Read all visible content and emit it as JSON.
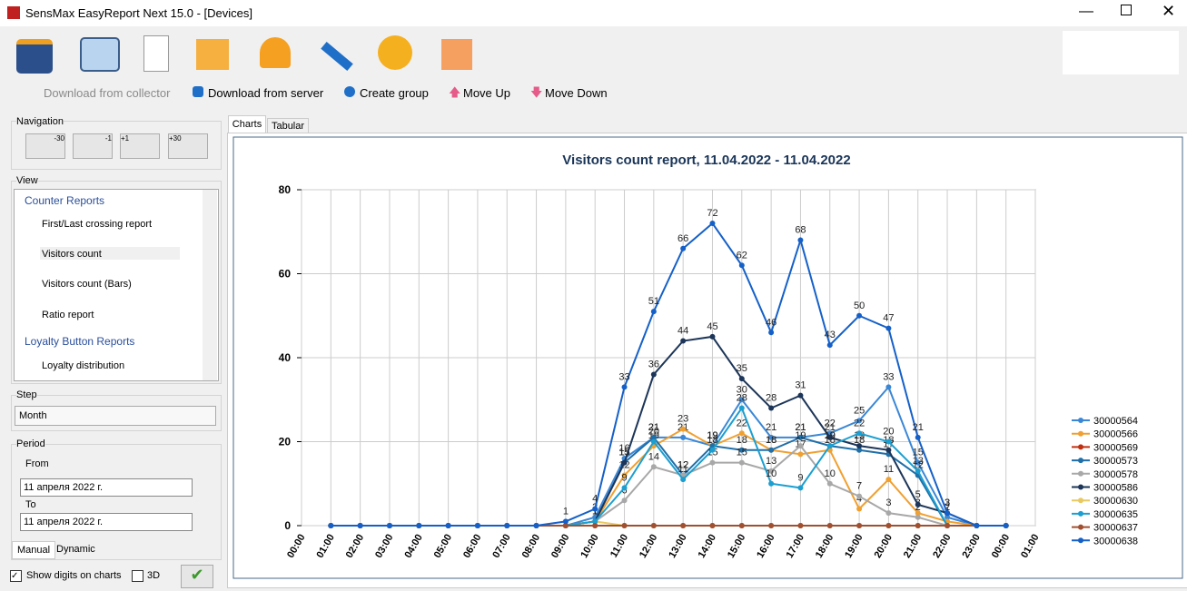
{
  "window": {
    "title": "SensMax EasyReport Next 15.0  - [Devices]"
  },
  "toolbar2": [
    "Download from collector",
    "Download from server",
    "Create group",
    "Move Up",
    "Move Down"
  ],
  "left": {
    "navigation": {
      "title": "Navigation",
      "buttons": [
        "-30",
        "-1",
        "+1",
        "+30"
      ]
    },
    "view": {
      "title": "View",
      "items": [
        "Counter Reports",
        "First/Last crossing report",
        "Visitors count",
        "Visitors count (Bars)",
        "Ratio report",
        "Loyalty Button Reports",
        "Loyalty distribution"
      ]
    },
    "step": {
      "title": "Step",
      "value": "Month"
    },
    "period": {
      "title": "Period",
      "from": "From",
      "from_date": "11  апреля  2022 г.",
      "to": "To",
      "to_date": "11  апреля  2022 г."
    },
    "tabs": [
      "Manual",
      "Dynamic"
    ],
    "checks": [
      "Show digits on charts",
      "3D"
    ]
  },
  "tabs": [
    "Charts",
    "Tabular"
  ],
  "chart_data": {
    "type": "line",
    "title": "Visitors count report, 11.04.2022 - 11.04.2022",
    "categories": [
      "00:00",
      "01:00",
      "02:00",
      "03:00",
      "04:00",
      "05:00",
      "06:00",
      "07:00",
      "08:00",
      "09:00",
      "10:00",
      "11:00",
      "12:00",
      "13:00",
      "14:00",
      "15:00",
      "16:00",
      "17:00",
      "18:00",
      "19:00",
      "20:00",
      "21:00",
      "22:00",
      "23:00",
      "00:00",
      "01:00"
    ],
    "ylim": [
      0,
      80
    ],
    "yticks": [
      0,
      20,
      40,
      60,
      80
    ],
    "grid": true,
    "legend": "right",
    "value_labels_shown": true,
    "series": [
      {
        "name": "30000564",
        "color": "#3a87d6",
        "values": [
          null,
          0,
          0,
          0,
          0,
          0,
          0,
          0,
          0,
          0,
          2,
          16,
          21,
          21,
          19,
          30,
          21,
          21,
          22,
          25,
          33,
          15,
          2,
          0,
          0,
          null
        ]
      },
      {
        "name": "30000566",
        "color": "#f0a030",
        "values": [
          null,
          0,
          0,
          0,
          0,
          0,
          0,
          0,
          0,
          0,
          1,
          12,
          19,
          23,
          19,
          22,
          18,
          17,
          18,
          4,
          11,
          3,
          1,
          0,
          0,
          null
        ]
      },
      {
        "name": "30000569",
        "color": "#c03010",
        "values": [
          null,
          0,
          0,
          0,
          0,
          0,
          0,
          0,
          0,
          0,
          0,
          0,
          0,
          0,
          0,
          0,
          0,
          0,
          0,
          0,
          0,
          0,
          0,
          0,
          0,
          null
        ]
      },
      {
        "name": "30000573",
        "color": "#1f6fa8",
        "values": [
          null,
          0,
          0,
          0,
          0,
          0,
          0,
          0,
          0,
          0,
          1,
          15,
          21,
          12,
          19,
          18,
          18,
          21,
          19,
          18,
          17,
          12,
          0,
          0,
          0,
          null
        ]
      },
      {
        "name": "30000578",
        "color": "#a8a8a8",
        "values": [
          null,
          0,
          0,
          0,
          0,
          0,
          0,
          0,
          0,
          0,
          1,
          6,
          14,
          12,
          15,
          15,
          13,
          19,
          10,
          7,
          3,
          2,
          0,
          0,
          0,
          null
        ]
      },
      {
        "name": "30000586",
        "color": "#1c3558",
        "values": [
          null,
          0,
          0,
          0,
          0,
          0,
          0,
          0,
          0,
          0,
          1,
          15,
          36,
          44,
          45,
          35,
          28,
          31,
          21,
          19,
          18,
          5,
          3,
          0,
          0,
          null
        ]
      },
      {
        "name": "30000630",
        "color": "#e8c860",
        "values": [
          null,
          0,
          0,
          0,
          0,
          0,
          0,
          0,
          0,
          0,
          1,
          0,
          0,
          0,
          0,
          0,
          0,
          0,
          0,
          0,
          0,
          0,
          0,
          0,
          0,
          null
        ]
      },
      {
        "name": "30000635",
        "color": "#1c9fd0",
        "values": [
          null,
          0,
          0,
          0,
          0,
          0,
          0,
          0,
          0,
          0,
          1,
          9,
          20,
          11,
          18,
          28,
          10,
          9,
          19,
          22,
          20,
          13,
          0,
          0,
          0,
          null
        ]
      },
      {
        "name": "30000637",
        "color": "#a05030",
        "values": [
          null,
          0,
          0,
          0,
          0,
          0,
          0,
          0,
          0,
          0,
          0,
          0,
          0,
          0,
          0,
          0,
          0,
          0,
          0,
          0,
          0,
          0,
          0,
          0,
          0,
          null
        ]
      },
      {
        "name": "30000638",
        "color": "#1560c8",
        "values": [
          null,
          0,
          0,
          0,
          0,
          0,
          0,
          0,
          0,
          1,
          4,
          33,
          51,
          66,
          72,
          62,
          46,
          68,
          43,
          50,
          47,
          21,
          3,
          0,
          0,
          null
        ]
      }
    ]
  }
}
